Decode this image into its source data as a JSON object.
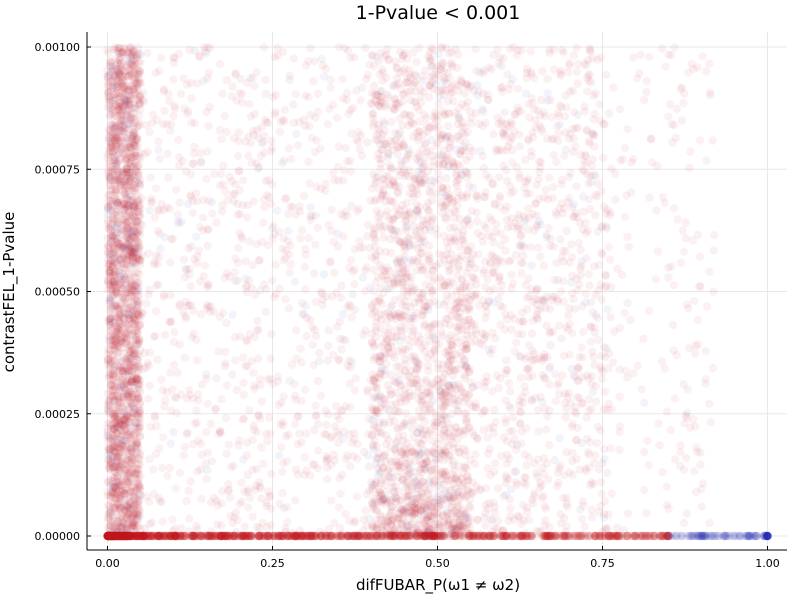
{
  "chart_data": {
    "type": "scatter",
    "title": "1-Pvalue < 0.001",
    "xlabel": "difFUBAR_P(ω1 ≠ ω2)",
    "ylabel": "contrastFEL_1-Pvalue",
    "xlim": [
      0.0,
      1.0
    ],
    "ylim": [
      0.0,
      0.001
    ],
    "x_ticks": [
      0.0,
      0.25,
      0.5,
      0.75,
      1.0
    ],
    "x_tick_labels": [
      "0.00",
      "0.25",
      "0.50",
      "0.75",
      "1.00"
    ],
    "y_ticks": [
      0.0,
      0.00025,
      0.0005,
      0.00075,
      0.001
    ],
    "y_tick_labels": [
      "0.00000",
      "0.00025",
      "0.00050",
      "0.00075",
      "0.00100"
    ],
    "grid": true,
    "legend": "none",
    "colors": {
      "primary": "#c0171c",
      "secondary": "#1b1fb0"
    },
    "point_cloud": {
      "description": "dense translucent scatter",
      "bands": [
        {
          "x_range": [
            0.0,
            0.05
          ],
          "y_range": [
            0.0,
            0.001
          ],
          "density": "very high"
        },
        {
          "x_range": [
            0.05,
            0.4
          ],
          "y_range": [
            0.0,
            0.001
          ],
          "density": "medium"
        },
        {
          "x_range": [
            0.4,
            0.55
          ],
          "y_range": [
            0.0,
            0.001
          ],
          "density": "high"
        },
        {
          "x_range": [
            0.55,
            0.76
          ],
          "y_range": [
            0.0,
            0.001
          ],
          "density": "medium"
        },
        {
          "x_range": [
            0.76,
            0.92
          ],
          "y_range": [
            0.0,
            0.001
          ],
          "density": "low"
        }
      ],
      "baseline": {
        "y": 0.0,
        "x_range": [
          0.0,
          1.0
        ],
        "density": "very high"
      }
    }
  }
}
